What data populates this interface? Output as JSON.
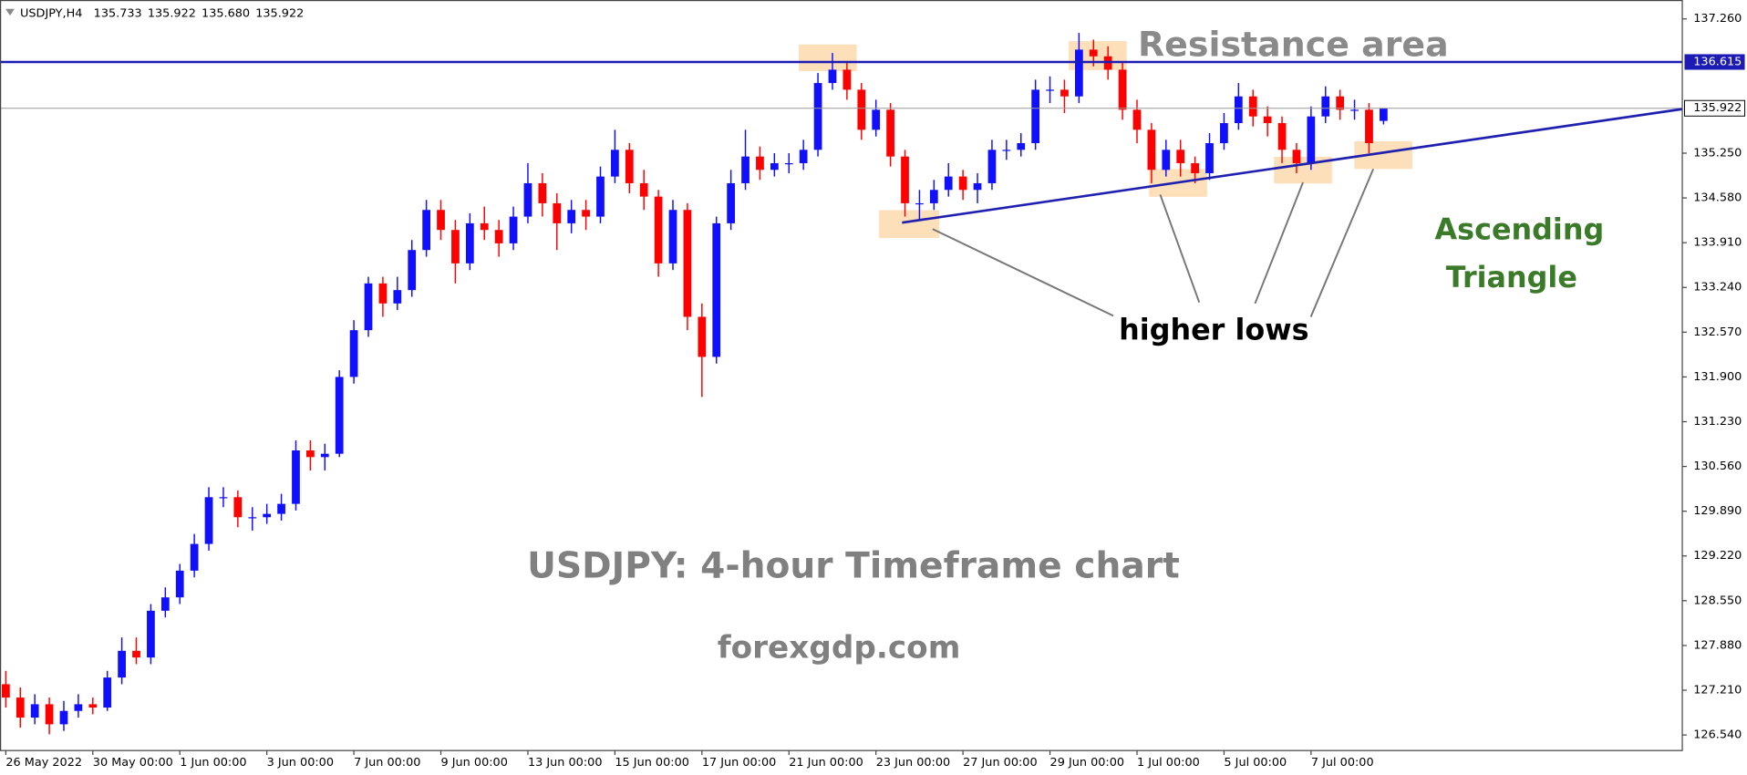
{
  "chart_data": {
    "type": "candlestick",
    "header": {
      "symbol": "USDJPY,H4",
      "ohlc": [
        "135.733",
        "135.922",
        "135.680",
        "135.922"
      ]
    },
    "title": "USDJPY: 4-hour Timeframe chart",
    "source": "forexgdp.com",
    "annotations": {
      "resistance": "Resistance area",
      "higher_lows": "higher lows",
      "pattern": [
        "Ascending",
        "Triangle"
      ]
    },
    "up_color": "#1010ff",
    "down_color": "#ff0000",
    "xlim": [
      -0.4,
      115.6
    ],
    "ylim": [
      126.307,
      137.543
    ],
    "xticks": [
      {
        "value": 0,
        "label": "26 May 2022"
      },
      {
        "value": 6,
        "label": "30 May 00:00"
      },
      {
        "value": 12,
        "label": "1 Jun 00:00"
      },
      {
        "value": 18,
        "label": "3 Jun 00:00"
      },
      {
        "value": 24,
        "label": "7 Jun 00:00"
      },
      {
        "value": 30,
        "label": "9 Jun 00:00"
      },
      {
        "value": 36,
        "label": "13 Jun 00:00"
      },
      {
        "value": 42,
        "label": "15 Jun 00:00"
      },
      {
        "value": 48,
        "label": "17 Jun 00:00"
      },
      {
        "value": 54,
        "label": "21 Jun 00:00"
      },
      {
        "value": 60,
        "label": "23 Jun 00:00"
      },
      {
        "value": 66,
        "label": "27 Jun 00:00"
      },
      {
        "value": 72,
        "label": "29 Jun 00:00"
      },
      {
        "value": 78,
        "label": "1 Jul 00:00"
      },
      {
        "value": 84,
        "label": "5 Jul 00:00"
      },
      {
        "value": 90,
        "label": "7 Jul 00:00"
      }
    ],
    "yticks": [
      {
        "value": 126.54,
        "label": "126.540"
      },
      {
        "value": 127.21,
        "label": "127.210"
      },
      {
        "value": 127.88,
        "label": "127.880"
      },
      {
        "value": 128.55,
        "label": "128.550"
      },
      {
        "value": 129.22,
        "label": "129.220"
      },
      {
        "value": 129.89,
        "label": "129.890"
      },
      {
        "value": 130.56,
        "label": "130.560"
      },
      {
        "value": 131.23,
        "label": "131.230"
      },
      {
        "value": 131.9,
        "label": "131.900"
      },
      {
        "value": 132.57,
        "label": "132.570"
      },
      {
        "value": 133.24,
        "label": "133.240"
      },
      {
        "value": 133.91,
        "label": "133.910"
      },
      {
        "value": 134.58,
        "label": "134.580"
      },
      {
        "value": 135.25,
        "label": "135.250"
      },
      {
        "value": 137.26,
        "label": "137.260"
      }
    ],
    "resistance": {
      "value": 136.615,
      "color": "#1c1cb4"
    },
    "trendline": {
      "x": [
        61.8,
        115.6
      ],
      "values": [
        134.21,
        135.91
      ],
      "color": "#2020b0"
    },
    "candles": {
      "open": [
        127.3,
        127.1,
        126.8,
        127.0,
        126.7,
        126.9,
        127.0,
        126.95,
        127.4,
        127.8,
        127.7,
        128.4,
        128.6,
        129.0,
        129.4,
        130.1,
        130.1,
        129.8,
        129.8,
        129.85,
        130.0,
        130.8,
        130.7,
        130.75,
        131.9,
        132.6,
        133.3,
        133.0,
        133.2,
        133.8,
        134.4,
        134.1,
        133.6,
        134.2,
        134.1,
        133.9,
        134.3,
        134.8,
        134.5,
        134.2,
        134.4,
        134.3,
        134.9,
        135.3,
        134.8,
        134.6,
        133.6,
        134.4,
        132.8,
        132.2,
        134.2,
        134.8,
        135.2,
        135.0,
        135.1,
        135.1,
        135.3,
        136.3,
        136.5,
        136.2,
        135.6,
        135.9,
        135.2,
        134.5,
        134.5,
        134.7,
        134.9,
        134.7,
        134.8,
        135.3,
        135.3,
        135.4,
        136.2,
        136.2,
        136.1,
        136.8,
        136.7,
        136.5,
        135.9,
        135.6,
        135.0,
        135.3,
        135.1,
        134.95,
        135.4,
        135.7,
        136.1,
        135.8,
        135.7,
        135.3,
        135.1,
        135.8,
        136.1,
        135.9,
        135.9,
        135.733
      ],
      "high": [
        127.5,
        127.25,
        127.15,
        127.1,
        127.05,
        127.15,
        127.1,
        127.5,
        128.0,
        128.0,
        128.5,
        128.75,
        129.1,
        129.55,
        130.25,
        130.25,
        130.2,
        129.95,
        130.0,
        130.15,
        130.95,
        130.95,
        130.9,
        132.0,
        132.75,
        133.4,
        133.4,
        133.4,
        133.95,
        134.55,
        134.55,
        134.25,
        134.35,
        134.45,
        134.25,
        134.45,
        135.1,
        134.95,
        134.65,
        134.55,
        134.55,
        135.05,
        135.6,
        135.4,
        135.0,
        134.7,
        134.55,
        134.5,
        133.0,
        134.3,
        135.0,
        135.6,
        135.35,
        135.25,
        135.25,
        135.45,
        136.45,
        136.75,
        136.6,
        136.3,
        136.05,
        136.0,
        135.3,
        134.7,
        134.85,
        135.1,
        135.0,
        134.95,
        135.45,
        135.45,
        135.55,
        136.35,
        136.4,
        136.35,
        137.05,
        136.95,
        136.85,
        136.6,
        136.05,
        135.7,
        135.45,
        135.45,
        135.2,
        135.55,
        135.85,
        136.3,
        136.2,
        135.95,
        135.8,
        135.4,
        135.95,
        136.25,
        136.2,
        136.05,
        136.0,
        135.922
      ],
      "low": [
        126.95,
        126.65,
        126.7,
        126.55,
        126.6,
        126.8,
        126.85,
        126.9,
        127.3,
        127.6,
        127.6,
        128.3,
        128.5,
        128.9,
        129.3,
        129.95,
        129.65,
        129.6,
        129.7,
        129.75,
        129.9,
        130.5,
        130.5,
        130.7,
        131.8,
        132.5,
        132.8,
        132.9,
        133.1,
        133.7,
        133.95,
        133.3,
        133.5,
        133.95,
        133.7,
        133.8,
        134.2,
        134.3,
        133.8,
        134.05,
        134.1,
        134.2,
        134.8,
        134.65,
        134.4,
        133.4,
        133.5,
        132.6,
        131.6,
        132.1,
        134.1,
        134.7,
        134.85,
        134.9,
        134.95,
        135.0,
        135.2,
        136.2,
        136.05,
        135.45,
        135.5,
        135.05,
        134.3,
        134.25,
        134.4,
        134.6,
        134.55,
        134.5,
        134.7,
        135.15,
        135.2,
        135.3,
        136.0,
        135.85,
        136.0,
        136.55,
        136.35,
        135.75,
        135.4,
        134.8,
        134.9,
        134.9,
        134.8,
        134.85,
        135.3,
        135.6,
        135.65,
        135.5,
        135.1,
        134.95,
        135.0,
        135.7,
        135.75,
        135.75,
        135.25,
        135.68
      ],
      "close": [
        127.1,
        126.8,
        127.0,
        126.7,
        126.9,
        127.0,
        126.95,
        127.4,
        127.8,
        127.7,
        128.4,
        128.6,
        129.0,
        129.4,
        130.1,
        130.1,
        129.8,
        129.8,
        129.85,
        130.0,
        130.8,
        130.7,
        130.75,
        131.9,
        132.6,
        133.3,
        133.0,
        133.2,
        133.8,
        134.4,
        134.1,
        133.6,
        134.2,
        134.1,
        133.9,
        134.3,
        134.8,
        134.5,
        134.2,
        134.4,
        134.3,
        134.9,
        135.3,
        134.8,
        134.6,
        133.6,
        134.4,
        132.8,
        132.2,
        134.2,
        134.8,
        135.2,
        135.0,
        135.1,
        135.1,
        135.3,
        136.3,
        136.5,
        136.2,
        135.6,
        135.9,
        135.2,
        134.5,
        134.5,
        134.7,
        134.9,
        134.7,
        134.8,
        135.3,
        135.3,
        135.4,
        136.2,
        136.2,
        136.1,
        136.8,
        136.7,
        136.5,
        135.9,
        135.6,
        135.0,
        135.3,
        135.1,
        134.95,
        135.4,
        135.7,
        136.1,
        135.8,
        135.7,
        135.3,
        135.1,
        135.8,
        136.1,
        135.9,
        135.9,
        135.4,
        135.922
      ]
    }
  }
}
